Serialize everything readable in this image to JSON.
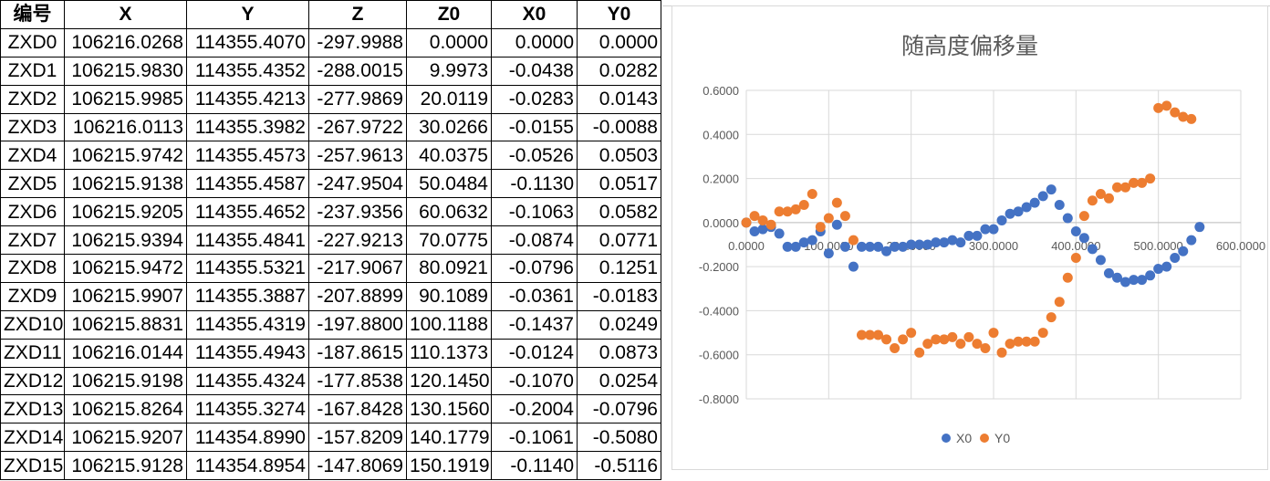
{
  "table": {
    "headers": [
      "编号",
      "X",
      "Y",
      "Z",
      "Z0",
      "X0",
      "Y0"
    ],
    "rows": [
      [
        "ZXD0",
        "106216.0268",
        "114355.4070",
        "-297.9988",
        "0.0000",
        "0.0000",
        "0.0000"
      ],
      [
        "ZXD1",
        "106215.9830",
        "114355.4352",
        "-288.0015",
        "9.9973",
        "-0.0438",
        "0.0282"
      ],
      [
        "ZXD2",
        "106215.9985",
        "114355.4213",
        "-277.9869",
        "20.0119",
        "-0.0283",
        "0.0143"
      ],
      [
        "ZXD3",
        "106216.0113",
        "114355.3982",
        "-267.9722",
        "30.0266",
        "-0.0155",
        "-0.0088"
      ],
      [
        "ZXD4",
        "106215.9742",
        "114355.4573",
        "-257.9613",
        "40.0375",
        "-0.0526",
        "0.0503"
      ],
      [
        "ZXD5",
        "106215.9138",
        "114355.4587",
        "-247.9504",
        "50.0484",
        "-0.1130",
        "0.0517"
      ],
      [
        "ZXD6",
        "106215.9205",
        "114355.4652",
        "-237.9356",
        "60.0632",
        "-0.1063",
        "0.0582"
      ],
      [
        "ZXD7",
        "106215.9394",
        "114355.4841",
        "-227.9213",
        "70.0775",
        "-0.0874",
        "0.0771"
      ],
      [
        "ZXD8",
        "106215.9472",
        "114355.5321",
        "-217.9067",
        "80.0921",
        "-0.0796",
        "0.1251"
      ],
      [
        "ZXD9",
        "106215.9907",
        "114355.3887",
        "-207.8899",
        "90.1089",
        "-0.0361",
        "-0.0183"
      ],
      [
        "ZXD10",
        "106215.8831",
        "114355.4319",
        "-197.8800",
        "100.1188",
        "-0.1437",
        "0.0249"
      ],
      [
        "ZXD11",
        "106216.0144",
        "114355.4943",
        "-187.8615",
        "110.1373",
        "-0.0124",
        "0.0873"
      ],
      [
        "ZXD12",
        "106215.9198",
        "114355.4324",
        "-177.8538",
        "120.1450",
        "-0.1070",
        "0.0254"
      ],
      [
        "ZXD13",
        "106215.8264",
        "114355.3274",
        "-167.8428",
        "130.1560",
        "-0.2004",
        "-0.0796"
      ],
      [
        "ZXD14",
        "106215.9207",
        "114354.8990",
        "-157.8209",
        "140.1779",
        "-0.1061",
        "-0.5080"
      ],
      [
        "ZXD15",
        "106215.9128",
        "114354.8954",
        "-147.8069",
        "150.1919",
        "-0.1140",
        "-0.5116"
      ]
    ]
  },
  "chart_data": {
    "type": "scatter",
    "title": "随高度偏移量",
    "xlabel": "",
    "ylabel": "",
    "xlim": [
      0,
      600
    ],
    "ylim": [
      -0.8,
      0.6
    ],
    "x_ticks": [
      "0.0000",
      "100.0000",
      "200.0000",
      "300.0000",
      "400.0000",
      "500.0000",
      "600.0000"
    ],
    "y_ticks": [
      "0.6000",
      "0.4000",
      "0.2000",
      "0.0000",
      "-0.2000",
      "-0.4000",
      "-0.6000",
      "-0.8000"
    ],
    "grid": true,
    "legend_position": "bottom",
    "series": [
      {
        "name": "X0",
        "color": "#4472C4",
        "points": [
          [
            0,
            0.0
          ],
          [
            10,
            -0.04
          ],
          [
            20,
            -0.03
          ],
          [
            30,
            -0.02
          ],
          [
            40,
            -0.05
          ],
          [
            50,
            -0.11
          ],
          [
            60,
            -0.11
          ],
          [
            70,
            -0.09
          ],
          [
            80,
            -0.08
          ],
          [
            90,
            -0.04
          ],
          [
            100,
            -0.14
          ],
          [
            110,
            -0.01
          ],
          [
            120,
            -0.11
          ],
          [
            130,
            -0.2
          ],
          [
            140,
            -0.11
          ],
          [
            150,
            -0.11
          ],
          [
            160,
            -0.11
          ],
          [
            170,
            -0.13
          ],
          [
            180,
            -0.11
          ],
          [
            190,
            -0.11
          ],
          [
            200,
            -0.1
          ],
          [
            210,
            -0.1
          ],
          [
            220,
            -0.1
          ],
          [
            230,
            -0.09
          ],
          [
            240,
            -0.09
          ],
          [
            250,
            -0.08
          ],
          [
            260,
            -0.09
          ],
          [
            270,
            -0.06
          ],
          [
            280,
            -0.06
          ],
          [
            290,
            -0.03
          ],
          [
            300,
            -0.03
          ],
          [
            310,
            0.01
          ],
          [
            320,
            0.04
          ],
          [
            330,
            0.05
          ],
          [
            340,
            0.07
          ],
          [
            350,
            0.09
          ],
          [
            360,
            0.12
          ],
          [
            370,
            0.15
          ],
          [
            380,
            0.08
          ],
          [
            390,
            0.02
          ],
          [
            400,
            -0.04
          ],
          [
            410,
            -0.07
          ],
          [
            420,
            -0.12
          ],
          [
            430,
            -0.17
          ],
          [
            440,
            -0.23
          ],
          [
            450,
            -0.25
          ],
          [
            460,
            -0.27
          ],
          [
            470,
            -0.26
          ],
          [
            480,
            -0.26
          ],
          [
            490,
            -0.24
          ],
          [
            500,
            -0.21
          ],
          [
            510,
            -0.2
          ],
          [
            520,
            -0.16
          ],
          [
            530,
            -0.13
          ],
          [
            540,
            -0.08
          ],
          [
            550,
            -0.02
          ]
        ]
      },
      {
        "name": "Y0",
        "color": "#ED7D31",
        "points": [
          [
            0,
            0.0
          ],
          [
            10,
            0.03
          ],
          [
            20,
            0.01
          ],
          [
            30,
            -0.01
          ],
          [
            40,
            0.05
          ],
          [
            50,
            0.05
          ],
          [
            60,
            0.06
          ],
          [
            70,
            0.08
          ],
          [
            80,
            0.13
          ],
          [
            90,
            -0.02
          ],
          [
            100,
            0.02
          ],
          [
            110,
            0.09
          ],
          [
            120,
            0.03
          ],
          [
            130,
            -0.08
          ],
          [
            140,
            -0.51
          ],
          [
            150,
            -0.51
          ],
          [
            160,
            -0.51
          ],
          [
            170,
            -0.53
          ],
          [
            180,
            -0.57
          ],
          [
            190,
            -0.53
          ],
          [
            200,
            -0.5
          ],
          [
            210,
            -0.59
          ],
          [
            220,
            -0.55
          ],
          [
            230,
            -0.53
          ],
          [
            240,
            -0.53
          ],
          [
            250,
            -0.52
          ],
          [
            260,
            -0.55
          ],
          [
            270,
            -0.52
          ],
          [
            280,
            -0.55
          ],
          [
            290,
            -0.57
          ],
          [
            300,
            -0.5
          ],
          [
            310,
            -0.59
          ],
          [
            320,
            -0.55
          ],
          [
            330,
            -0.54
          ],
          [
            340,
            -0.54
          ],
          [
            350,
            -0.54
          ],
          [
            360,
            -0.5
          ],
          [
            370,
            -0.43
          ],
          [
            380,
            -0.36
          ],
          [
            390,
            -0.25
          ],
          [
            400,
            -0.16
          ],
          [
            410,
            0.03
          ],
          [
            420,
            0.1
          ],
          [
            430,
            0.13
          ],
          [
            440,
            0.11
          ],
          [
            450,
            0.16
          ],
          [
            460,
            0.16
          ],
          [
            470,
            0.18
          ],
          [
            480,
            0.18
          ],
          [
            490,
            0.2
          ],
          [
            500,
            0.52
          ],
          [
            510,
            0.53
          ],
          [
            520,
            0.5
          ],
          [
            530,
            0.48
          ],
          [
            540,
            0.47
          ]
        ]
      }
    ]
  }
}
